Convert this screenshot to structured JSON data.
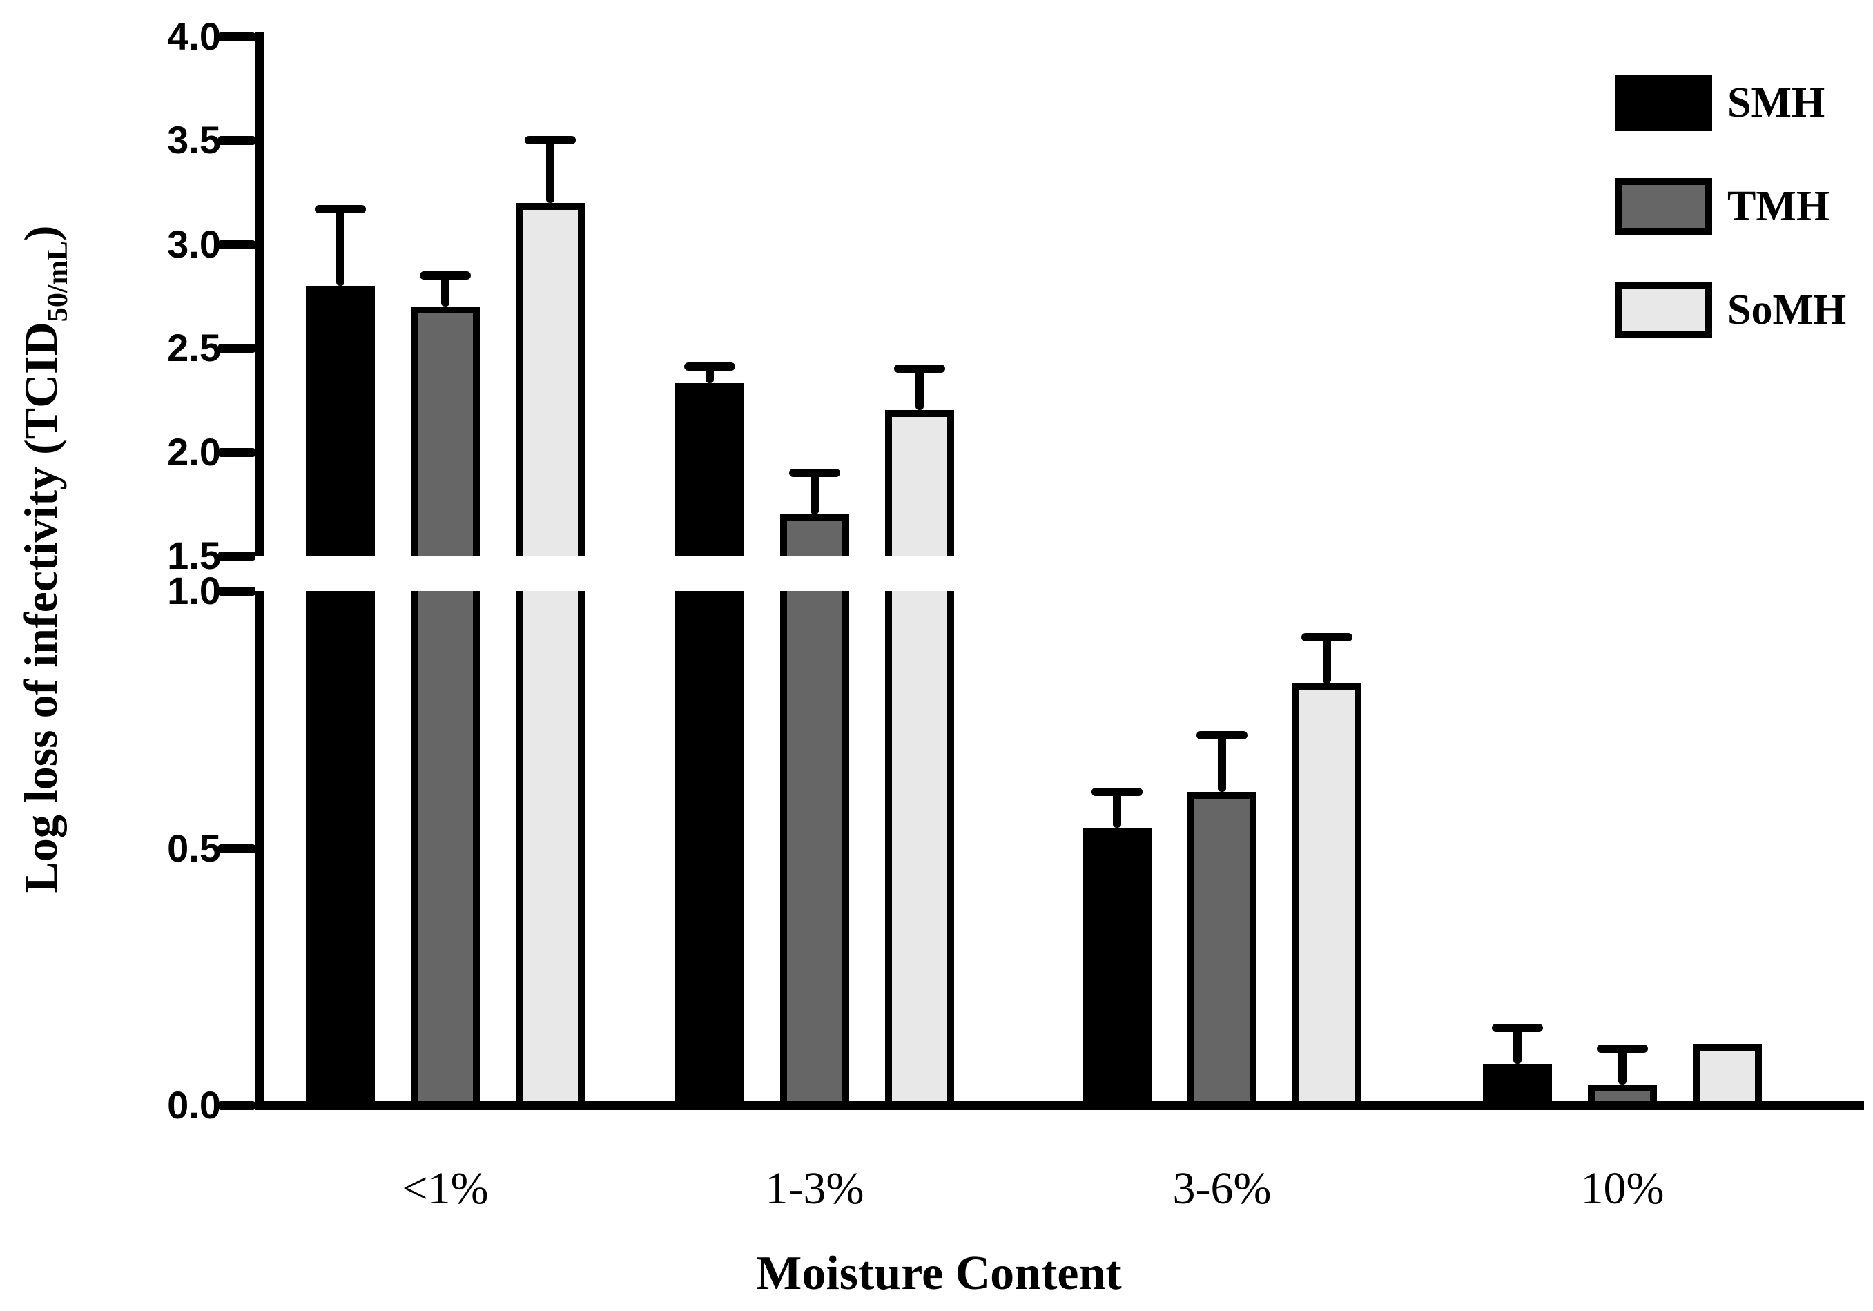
{
  "figure": {
    "background": "#ffffff",
    "ylabel_parts": {
      "main": "Log loss of infectivity (TCID",
      "sub": "50/mL",
      "close": ")"
    },
    "xlabel": "Moisture Content"
  },
  "chart_data": {
    "type": "bar",
    "title": "",
    "xlabel": "Moisture Content",
    "ylabel": "Log loss of infectivity (TCID50/mL)",
    "categories": [
      "<1%",
      "1-3%",
      "3-6%",
      "10%"
    ],
    "series": [
      {
        "name": "SMH",
        "fill": "#000000",
        "values": [
          2.8,
          2.33,
          0.54,
          0.08
        ],
        "errors_plus": [
          0.37,
          0.08,
          0.07,
          0.07
        ]
      },
      {
        "name": "TMH",
        "fill": "#666666",
        "values": [
          2.7,
          1.7,
          0.61,
          0.04
        ],
        "errors_plus": [
          0.15,
          0.2,
          0.11,
          0.07
        ]
      },
      {
        "name": "SoMH",
        "fill": "#e8e8e8",
        "values": [
          3.2,
          2.2,
          0.82,
          0.12
        ],
        "errors_plus": [
          0.3,
          0.2,
          0.09,
          null
        ]
      }
    ],
    "y_axis": {
      "broken": true,
      "lower_range": [
        0.0,
        1.0
      ],
      "upper_range": [
        1.5,
        4.0
      ],
      "ticks_lower": [
        0.0,
        0.5,
        1.0
      ],
      "ticks_upper": [
        1.5,
        2.0,
        2.5,
        3.0,
        3.5,
        4.0
      ],
      "tick_format_decimals": 1
    },
    "error_bars": "upper_only",
    "bar_outline_color": "#000000",
    "legend_position": "top-right",
    "grid": false
  }
}
